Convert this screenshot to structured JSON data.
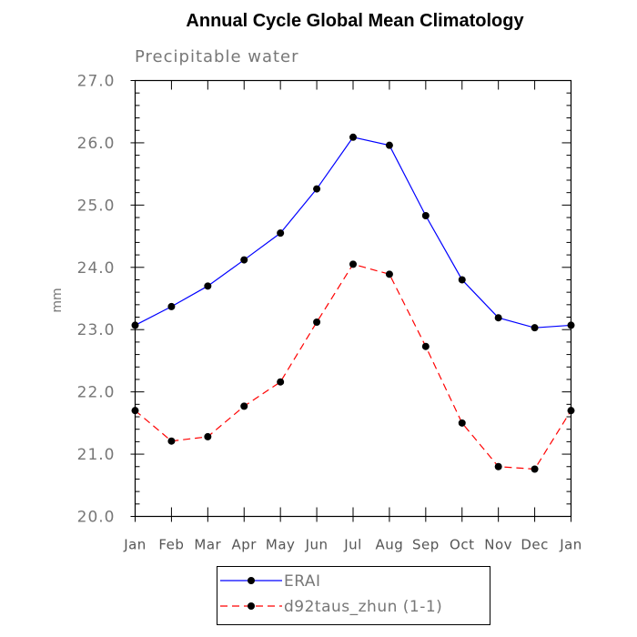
{
  "chart_data": {
    "type": "line",
    "title": "Annual Cycle Global Mean Climatology",
    "subtitle": "Precipitable water",
    "xlabel": "",
    "ylabel": "mm",
    "categories": [
      "Jan",
      "Feb",
      "Mar",
      "Apr",
      "May",
      "Jun",
      "Jul",
      "Aug",
      "Sep",
      "Oct",
      "Nov",
      "Dec",
      "Jan"
    ],
    "ylim": [
      20.0,
      27.0
    ],
    "yticks": [
      "20.0",
      "21.0",
      "22.0",
      "23.0",
      "24.0",
      "25.0",
      "26.0",
      "27.0"
    ],
    "legend_position": "bottom",
    "series": [
      {
        "name": "ERAI",
        "color": "#0000ff",
        "dash": "solid",
        "values": [
          23.07,
          23.37,
          23.7,
          24.12,
          24.55,
          25.26,
          26.09,
          25.96,
          24.83,
          23.8,
          23.19,
          23.03,
          23.07
        ]
      },
      {
        "name": "d92taus_zhun (1-1)",
        "color": "#ff0000",
        "dash": "dashed",
        "values": [
          21.7,
          21.21,
          21.28,
          21.77,
          22.16,
          23.12,
          24.05,
          23.89,
          22.73,
          21.5,
          20.8,
          20.76,
          21.7
        ]
      }
    ]
  }
}
